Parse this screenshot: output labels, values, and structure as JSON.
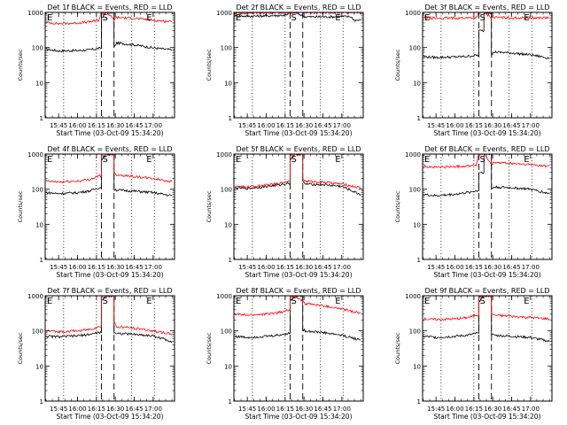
{
  "colors": {
    "events": "#000000",
    "lld": "#ff0000",
    "background": "#ffffff"
  },
  "chart_data": [
    {
      "type": "line",
      "title": "Det 1f BLACK = Events, RED = LLD",
      "xlabel": "Start Time (03-Oct-09 15:34:20)",
      "ylabel": "Counts/sec",
      "yscale": "log",
      "ylim": [
        1,
        1000
      ],
      "y_ticks": [
        "1",
        "10",
        "100",
        "1000"
      ],
      "xlim": [
        "15:34:20",
        "17:17:00"
      ],
      "x_ticks": [
        "15:45",
        "16:00",
        "16:15",
        "16:30",
        "16:45",
        "17:00"
      ],
      "vlines_dotted": [
        "15:49",
        "16:15",
        "16:43",
        "17:01"
      ],
      "vlines_dashed": [
        "16:19",
        "16:29"
      ],
      "markers": [
        {
          "label": "E",
          "x": "15:35"
        },
        {
          "label": "S",
          "x": "16:19"
        },
        {
          "label": "E",
          "x": "16:54"
        }
      ],
      "grid": false,
      "series": [
        {
          "x": [
            "15:35",
            "15:45",
            "16:00",
            "16:10",
            "16:17",
            "16:19",
            "16:23",
            "16:29",
            "16:31",
            "16:45",
            "17:00",
            "17:15"
          ],
          "values": [
            90,
            80,
            82,
            86,
            95,
            700,
            1000,
            100,
            135,
            120,
            98,
            85
          ]
        },
        {
          "x": [
            "15:35",
            "15:45",
            "16:00",
            "16:10",
            "16:17",
            "16:19",
            "16:23",
            "16:29",
            "16:31",
            "16:45",
            "17:00",
            "17:15"
          ],
          "values": [
            520,
            480,
            500,
            540,
            600,
            1000,
            1000,
            620,
            720,
            680,
            600,
            540
          ]
        }
      ]
    },
    {
      "type": "line",
      "title": "Det 2f BLACK = Events, RED = LLD",
      "xlabel": "Start Time (03-Oct-09 15:34:20)",
      "ylabel": "Counts/sec",
      "yscale": "log",
      "ylim": [
        1,
        1000
      ],
      "y_ticks": [
        "1",
        "10",
        "100",
        "1000"
      ],
      "xlim": [
        "15:34:20",
        "17:17:00"
      ],
      "x_ticks": [
        "15:45",
        "16:00",
        "16:15",
        "16:30",
        "16:45",
        "17:00"
      ],
      "vlines_dotted": [
        "15:49",
        "16:15",
        "16:43",
        "17:01"
      ],
      "vlines_dashed": [
        "16:19",
        "16:29"
      ],
      "markers": [
        {
          "label": "E",
          "x": "15:35"
        },
        {
          "label": "S",
          "x": "16:19"
        },
        {
          "label": "E",
          "x": "16:54"
        }
      ],
      "grid": false,
      "series": [
        {
          "x": [
            "15:35",
            "15:45",
            "16:00",
            "16:10",
            "16:17",
            "16:19",
            "16:23",
            "16:29",
            "16:31",
            "16:45",
            "17:00",
            "17:07",
            "17:10",
            "17:15"
          ],
          "values": [
            800,
            780,
            800,
            820,
            850,
            1000,
            1000,
            800,
            750,
            750,
            760,
            760,
            600,
            600
          ]
        },
        {
          "x": [
            "15:35",
            "15:45",
            "16:00",
            "16:10",
            "16:17",
            "16:19",
            "16:23",
            "16:29",
            "16:31",
            "16:45",
            "17:00",
            "17:15"
          ],
          "values": [
            950,
            960,
            980,
            1000,
            1000,
            1000,
            1000,
            1000,
            1000,
            1000,
            1000,
            1000
          ]
        }
      ]
    },
    {
      "type": "line",
      "title": "Det 3f BLACK = Events, RED = LLD",
      "xlabel": "Start Time (03-Oct-09 15:34:20)",
      "ylabel": "Counts/sec",
      "yscale": "log",
      "ylim": [
        1,
        1000
      ],
      "y_ticks": [
        "1",
        "10",
        "100",
        "1000"
      ],
      "xlim": [
        "15:34:20",
        "17:17:00"
      ],
      "x_ticks": [
        "15:45",
        "16:00",
        "16:15",
        "16:30",
        "16:45",
        "17:00"
      ],
      "vlines_dotted": [
        "15:49",
        "16:15",
        "16:43",
        "17:01"
      ],
      "vlines_dashed": [
        "16:19",
        "16:29"
      ],
      "markers": [
        {
          "label": "E",
          "x": "15:35"
        },
        {
          "label": "S",
          "x": "16:19"
        },
        {
          "label": "E",
          "x": "16:54"
        }
      ],
      "grid": false,
      "series": [
        {
          "x": [
            "15:35",
            "15:45",
            "16:00",
            "16:10",
            "16:17",
            "16:19",
            "16:23",
            "16:29",
            "16:31",
            "16:45",
            "17:00",
            "17:15"
          ],
          "values": [
            55,
            52,
            54,
            56,
            60,
            300,
            1000,
            60,
            75,
            70,
            62,
            50
          ]
        },
        {
          "x": [
            "15:35",
            "15:45",
            "16:00",
            "16:10",
            "16:17",
            "16:19",
            "16:23",
            "16:29",
            "16:31",
            "16:45",
            "17:00",
            "17:15"
          ],
          "values": [
            700,
            680,
            690,
            700,
            720,
            1000,
            1000,
            720,
            720,
            700,
            700,
            700
          ]
        }
      ]
    },
    {
      "type": "line",
      "title": "Det 4f BLACK = Events, RED = LLD",
      "xlabel": "Start Time (03-Oct-09 15:34:20)",
      "ylabel": "Counts/sec",
      "yscale": "log",
      "ylim": [
        1,
        1000
      ],
      "y_ticks": [
        "1",
        "10",
        "100",
        "1000"
      ],
      "xlim": [
        "15:34:20",
        "17:17:00"
      ],
      "x_ticks": [
        "15:45",
        "16:00",
        "16:15",
        "16:30",
        "16:45",
        "17:00"
      ],
      "vlines_dotted": [
        "15:49",
        "16:15",
        "16:43",
        "17:01"
      ],
      "vlines_dashed": [
        "16:19",
        "16:29"
      ],
      "markers": [
        {
          "label": "E",
          "x": "15:35"
        },
        {
          "label": "S",
          "x": "16:19"
        },
        {
          "label": "E",
          "x": "16:54"
        }
      ],
      "grid": false,
      "series": [
        {
          "x": [
            "15:35",
            "15:45",
            "16:00",
            "16:10",
            "16:17",
            "16:19",
            "16:23",
            "16:29",
            "16:31",
            "16:45",
            "17:00",
            "17:15"
          ],
          "values": [
            80,
            75,
            80,
            90,
            110,
            700,
            1000,
            100,
            95,
            88,
            80,
            65
          ]
        },
        {
          "x": [
            "15:35",
            "15:45",
            "16:00",
            "16:10",
            "16:17",
            "16:19",
            "16:23",
            "16:29",
            "16:31",
            "16:45",
            "17:00",
            "17:15"
          ],
          "values": [
            170,
            160,
            170,
            190,
            240,
            1000,
            1000,
            300,
            260,
            230,
            200,
            165
          ]
        }
      ]
    },
    {
      "type": "line",
      "title": "Det 5f BLACK = Events, RED = LLD",
      "xlabel": "Start Time (03-Oct-09 15:34:20)",
      "ylabel": "Counts/sec",
      "yscale": "log",
      "ylim": [
        1,
        1000
      ],
      "y_ticks": [
        "1",
        "10",
        "100",
        "1000"
      ],
      "xlim": [
        "15:34:20",
        "17:17:00"
      ],
      "x_ticks": [
        "15:45",
        "16:00",
        "16:15",
        "16:30",
        "16:45",
        "17:00"
      ],
      "vlines_dotted": [
        "15:49",
        "16:15",
        "16:43",
        "17:01"
      ],
      "vlines_dashed": [
        "16:19",
        "16:29"
      ],
      "markers": [
        {
          "label": "E",
          "x": "15:35"
        },
        {
          "label": "S",
          "x": "16:19"
        },
        {
          "label": "E",
          "x": "16:54"
        }
      ],
      "grid": false,
      "series": [
        {
          "x": [
            "15:35",
            "15:45",
            "16:00",
            "16:10",
            "16:17",
            "16:19",
            "16:23",
            "16:29",
            "16:31",
            "16:45",
            "17:00",
            "17:15"
          ],
          "values": [
            110,
            105,
            120,
            130,
            150,
            700,
            1000,
            160,
            140,
            135,
            120,
            70
          ]
        },
        {
          "x": [
            "15:35",
            "15:45",
            "16:00",
            "16:10",
            "16:17",
            "16:19",
            "16:23",
            "16:29",
            "16:31",
            "16:45",
            "17:00",
            "17:15"
          ],
          "values": [
            120,
            115,
            130,
            145,
            170,
            1000,
            1000,
            200,
            170,
            160,
            140,
            110
          ]
        }
      ]
    },
    {
      "type": "line",
      "title": "Det 6f BLACK = Events, RED = LLD",
      "xlabel": "Start Time (03-Oct-09 15:34:20)",
      "ylabel": "Counts/sec",
      "yscale": "log",
      "ylim": [
        1,
        1000
      ],
      "y_ticks": [
        "1",
        "10",
        "100",
        "1000"
      ],
      "xlim": [
        "15:34:20",
        "17:17:00"
      ],
      "x_ticks": [
        "15:45",
        "16:00",
        "16:15",
        "16:30",
        "16:45",
        "17:00"
      ],
      "vlines_dotted": [
        "15:49",
        "16:15",
        "16:43",
        "17:01"
      ],
      "vlines_dashed": [
        "16:19",
        "16:29"
      ],
      "markers": [
        {
          "label": "E",
          "x": "15:35"
        },
        {
          "label": "S",
          "x": "16:19"
        },
        {
          "label": "E",
          "x": "16:54"
        }
      ],
      "grid": false,
      "series": [
        {
          "x": [
            "15:35",
            "15:45",
            "16:00",
            "16:10",
            "16:17",
            "16:19",
            "16:23",
            "16:29",
            "16:31",
            "16:45",
            "17:00",
            "17:15"
          ],
          "values": [
            70,
            65,
            72,
            80,
            90,
            300,
            1000,
            100,
            115,
            110,
            100,
            75
          ]
        },
        {
          "x": [
            "15:35",
            "15:45",
            "16:00",
            "16:10",
            "16:17",
            "16:19",
            "16:23",
            "16:29",
            "16:31",
            "16:45",
            "17:00",
            "17:15"
          ],
          "values": [
            450,
            420,
            440,
            460,
            500,
            1000,
            1000,
            500,
            580,
            540,
            500,
            450
          ]
        }
      ]
    },
    {
      "type": "line",
      "title": "Det 7f BLACK = Events, RED = LLD",
      "xlabel": "Start Time (03-Oct-09 15:34:20)",
      "ylabel": "Counts/sec",
      "yscale": "log",
      "ylim": [
        1,
        1000
      ],
      "y_ticks": [
        "1",
        "10",
        "100",
        "1000"
      ],
      "xlim": [
        "15:34:20",
        "17:17:00"
      ],
      "x_ticks": [
        "15:45",
        "16:00",
        "16:15",
        "16:30",
        "16:45",
        "17:00"
      ],
      "vlines_dotted": [
        "15:49",
        "16:15",
        "16:43",
        "17:01"
      ],
      "vlines_dashed": [
        "16:19",
        "16:29"
      ],
      "markers": [
        {
          "label": "E",
          "x": "15:35"
        },
        {
          "label": "S",
          "x": "16:19"
        },
        {
          "label": "E",
          "x": "16:54"
        }
      ],
      "grid": false,
      "series": [
        {
          "x": [
            "15:35",
            "15:45",
            "16:00",
            "16:10",
            "16:17",
            "16:19",
            "16:23",
            "16:29",
            "16:31",
            "16:45",
            "17:00",
            "17:15"
          ],
          "values": [
            70,
            68,
            72,
            80,
            90,
            700,
            1000,
            95,
            85,
            80,
            72,
            50
          ]
        },
        {
          "x": [
            "15:35",
            "15:45",
            "16:00",
            "16:10",
            "16:17",
            "16:19",
            "16:23",
            "16:29",
            "16:31",
            "16:45",
            "17:00",
            "17:15"
          ],
          "values": [
            100,
            95,
            100,
            110,
            130,
            1000,
            1000,
            180,
            130,
            120,
            100,
            80
          ]
        }
      ]
    },
    {
      "type": "line",
      "title": "Det 8f BLACK = Events, RED = LLD",
      "xlabel": "Start Time (03-Oct-09 15:34:20)",
      "ylabel": "Counts/sec",
      "yscale": "log",
      "ylim": [
        1,
        1000
      ],
      "y_ticks": [
        "1",
        "10",
        "100",
        "1000"
      ],
      "xlim": [
        "15:34:20",
        "17:17:00"
      ],
      "x_ticks": [
        "15:45",
        "16:00",
        "16:15",
        "16:30",
        "16:45",
        "17:00"
      ],
      "vlines_dotted": [
        "15:49",
        "16:15",
        "16:43",
        "17:01"
      ],
      "vlines_dashed": [
        "16:19",
        "16:29"
      ],
      "markers": [
        {
          "label": "E",
          "x": "15:35"
        },
        {
          "label": "S",
          "x": "16:19"
        },
        {
          "label": "E",
          "x": "16:54"
        }
      ],
      "grid": false,
      "series": [
        {
          "x": [
            "15:35",
            "15:45",
            "16:00",
            "16:10",
            "16:17",
            "16:19",
            "16:23",
            "16:29",
            "16:31",
            "16:45",
            "17:00",
            "17:15"
          ],
          "values": [
            70,
            65,
            70,
            75,
            85,
            700,
            1000,
            110,
            100,
            90,
            75,
            55
          ]
        },
        {
          "x": [
            "15:35",
            "15:45",
            "16:00",
            "16:10",
            "16:17",
            "16:19",
            "16:23",
            "16:29",
            "16:31",
            "16:45",
            "17:00",
            "17:15"
          ],
          "values": [
            300,
            280,
            300,
            330,
            380,
            1000,
            1000,
            700,
            600,
            520,
            420,
            320
          ]
        }
      ]
    },
    {
      "type": "line",
      "title": "Det 9f BLACK = Events, RED = LLD",
      "xlabel": "Start Time (03-Oct-09 15:34:20)",
      "ylabel": "Counts/sec",
      "yscale": "log",
      "ylim": [
        1,
        1000
      ],
      "y_ticks": [
        "1",
        "10",
        "100",
        "1000"
      ],
      "xlim": [
        "15:34:20",
        "17:17:00"
      ],
      "x_ticks": [
        "15:45",
        "16:00",
        "16:15",
        "16:30",
        "16:45",
        "17:00"
      ],
      "vlines_dotted": [
        "15:49",
        "16:15",
        "16:43",
        "17:01"
      ],
      "vlines_dashed": [
        "16:19",
        "16:29"
      ],
      "markers": [
        {
          "label": "E",
          "x": "15:35"
        },
        {
          "label": "S",
          "x": "16:19"
        },
        {
          "label": "E",
          "x": "16:54"
        }
      ],
      "grid": false,
      "series": [
        {
          "x": [
            "15:35",
            "15:45",
            "16:00",
            "16:10",
            "16:17",
            "16:19",
            "16:23",
            "16:29",
            "16:31",
            "16:45",
            "17:00",
            "17:15"
          ],
          "values": [
            70,
            65,
            70,
            75,
            85,
            700,
            1000,
            80,
            75,
            70,
            65,
            50
          ]
        },
        {
          "x": [
            "15:35",
            "15:45",
            "16:00",
            "16:10",
            "16:17",
            "16:19",
            "16:23",
            "16:29",
            "16:31",
            "16:45",
            "17:00",
            "17:15"
          ],
          "values": [
            220,
            210,
            220,
            240,
            280,
            1000,
            1000,
            320,
            280,
            260,
            240,
            220
          ]
        }
      ]
    }
  ]
}
